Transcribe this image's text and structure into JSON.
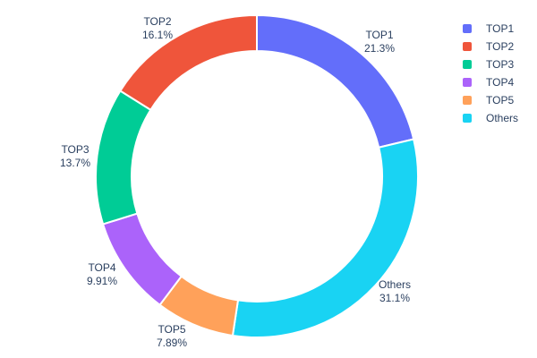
{
  "chart": {
    "background_color": "#ffffff",
    "text_color": "#2a3f5f",
    "slice_border_color": "#ffffff"
  },
  "chart_data": {
    "type": "pie",
    "subtype": "donut",
    "title": "",
    "labels": [
      "TOP1",
      "TOP2",
      "TOP3",
      "TOP4",
      "TOP5",
      "Others"
    ],
    "values": [
      21.3,
      16.1,
      13.7,
      9.91,
      7.89,
      31.1
    ],
    "percent_labels": [
      "21.3%",
      "16.1%",
      "13.7%",
      "9.91%",
      "7.89%",
      "31.1%"
    ],
    "colors": [
      "#636efa",
      "#ef553b",
      "#00cc96",
      "#ab63fa",
      "#ffa15a",
      "#19d3f3"
    ],
    "legend": {
      "position": "top-right",
      "entries": [
        "TOP1",
        "TOP2",
        "TOP3",
        "TOP4",
        "TOP5",
        "Others"
      ]
    },
    "layout_hints": {
      "center": [
        287,
        197
      ],
      "outer_radius": 180,
      "inner_radius": 140,
      "start_angle_deg": 0,
      "first_slice_clockwise_rest_counterclockwise": true,
      "slice_border_width": 2,
      "label_positions": [
        [
          424,
          47
        ],
        [
          176,
          32
        ],
        [
          84,
          175
        ],
        [
          114,
          307
        ],
        [
          192,
          376
        ],
        [
          441,
          326
        ]
      ],
      "legend_origin": [
        517,
        22
      ]
    }
  }
}
